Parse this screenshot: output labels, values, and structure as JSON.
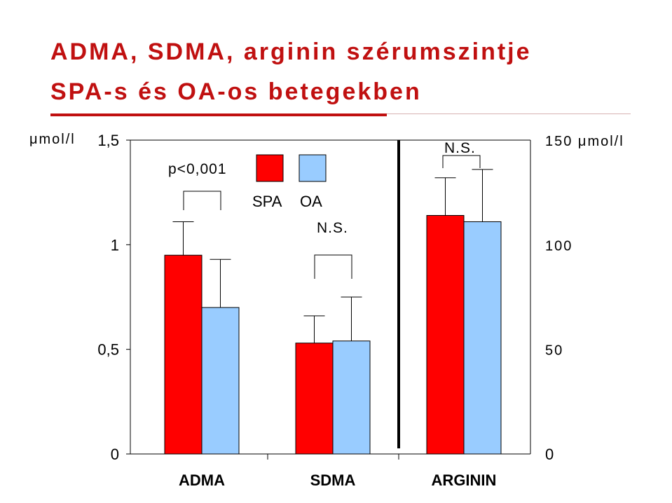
{
  "title_line1": "ADMA, SDMA, arginin szérumszintje",
  "title_line2": "SPA-s és OA-os betegekben",
  "chart_data": {
    "type": "bar",
    "categories": [
      "ADMA",
      "SDMA",
      "ARGININ"
    ],
    "series": [
      {
        "name": "SPA",
        "color": "#ff0000",
        "values": [
          0.95,
          0.53,
          114
        ],
        "errors": [
          0.16,
          0.13,
          18
        ]
      },
      {
        "name": "OA",
        "color": "#99ccff",
        "values": [
          0.7,
          0.54,
          111
        ],
        "errors": [
          0.23,
          0.21,
          25
        ]
      }
    ],
    "left_axis": {
      "unit": "μmol/l",
      "ylim": [
        0,
        1.5
      ],
      "ticks": [
        "0",
        "0,5",
        "1",
        "1,5"
      ],
      "applies_to": [
        "ADMA",
        "SDMA"
      ]
    },
    "right_axis": {
      "unit": "150 μmol/l",
      "ylim": [
        0,
        150
      ],
      "ticks": [
        "0",
        "50",
        "100",
        "150 μmol/l"
      ],
      "applies_to": [
        "ARGININ"
      ]
    },
    "annotations": [
      "p<0,001",
      "N.S.",
      "N.S."
    ],
    "legend": [
      "SPA",
      "OA"
    ],
    "legend_placement": "top-center"
  }
}
